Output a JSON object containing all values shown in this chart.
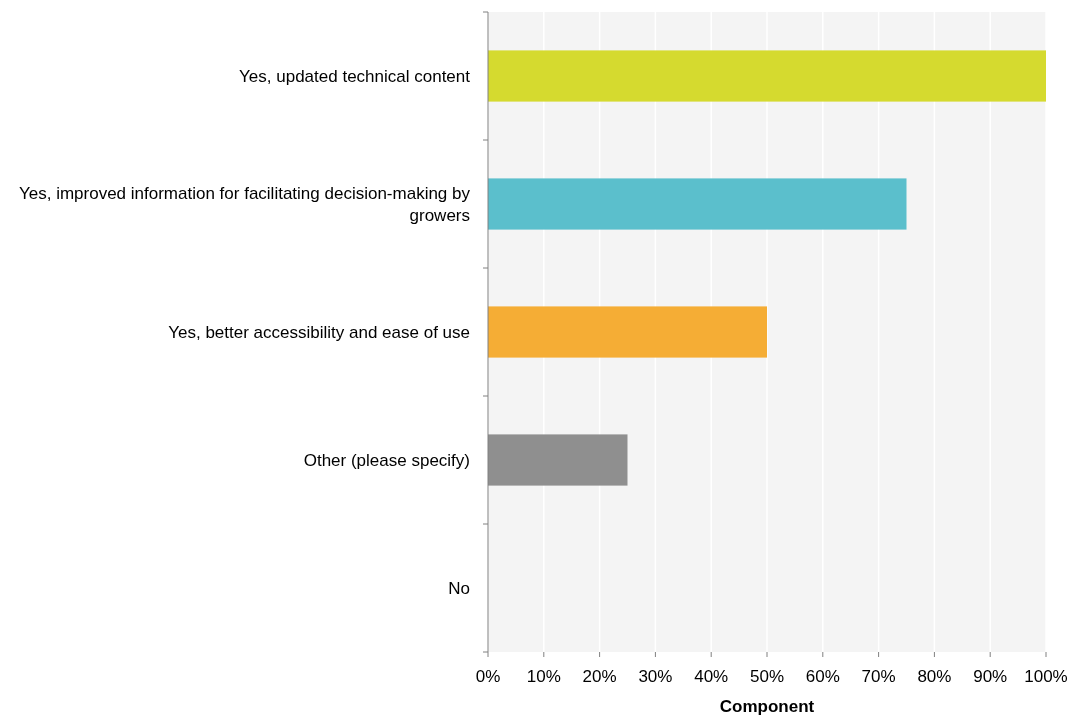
{
  "chart_data": {
    "type": "bar",
    "orientation": "horizontal",
    "xlabel": "Component",
    "categories": [
      "Yes, updated technical content",
      "Yes, improved information for facilitating decision-making by growers",
      "Yes, better accessibility and ease of use",
      "Other (please specify)",
      "No"
    ],
    "values": [
      100,
      75,
      50,
      25,
      0
    ],
    "colors": [
      "#d5da2f",
      "#5bbfcc",
      "#f5ad35",
      "#8f8f8f",
      "#c8c8c8"
    ],
    "xlim": [
      0,
      100
    ],
    "xticks": [
      {
        "value": 0,
        "label": "0%"
      },
      {
        "value": 10,
        "label": "10%"
      },
      {
        "value": 20,
        "label": "20%"
      },
      {
        "value": 30,
        "label": "30%"
      },
      {
        "value": 40,
        "label": "40%"
      },
      {
        "value": 50,
        "label": "50%"
      },
      {
        "value": 60,
        "label": "60%"
      },
      {
        "value": 70,
        "label": "70%"
      },
      {
        "value": 80,
        "label": "80%"
      },
      {
        "value": 90,
        "label": "90%"
      },
      {
        "value": 100,
        "label": "100%"
      }
    ],
    "grid": "x"
  }
}
